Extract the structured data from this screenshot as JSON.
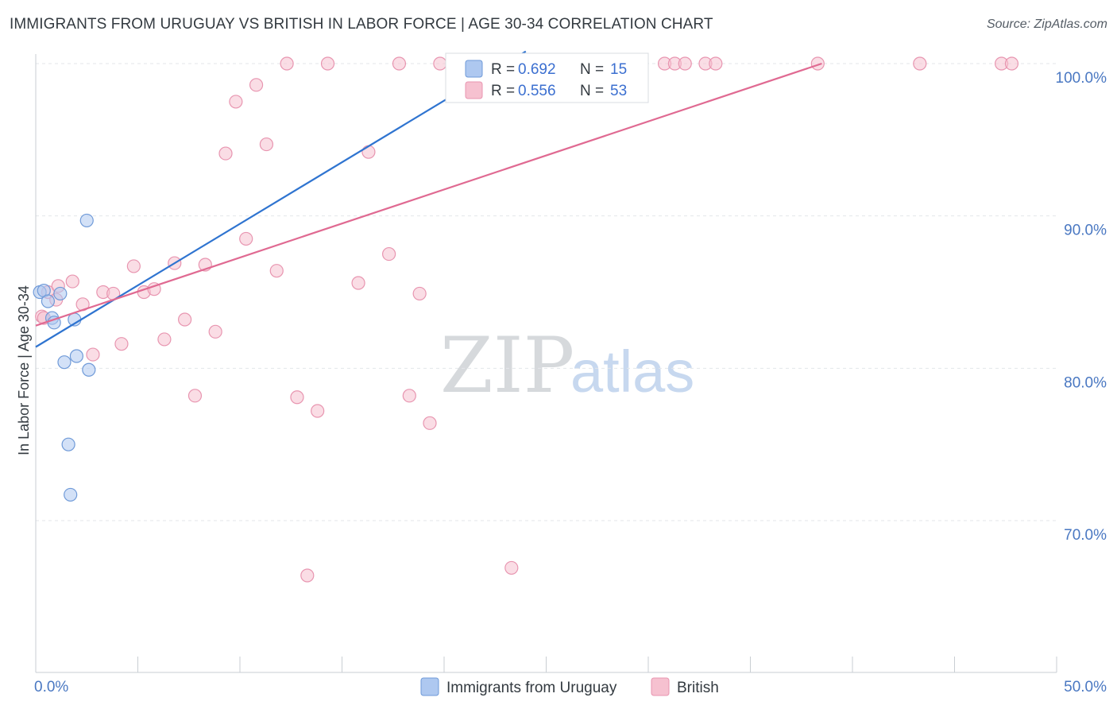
{
  "header": {
    "title": "IMMIGRANTS FROM URUGUAY VS BRITISH IN LABOR FORCE | AGE 30-34 CORRELATION CHART",
    "source": "Source: ZipAtlas.com"
  },
  "watermark": {
    "zip": "ZIP",
    "atlas": "atlas"
  },
  "colors": {
    "uruguay_fill": "#aec8f0",
    "uruguay_stroke": "#6f9ad8",
    "uruguay_line": "#2f74d0",
    "british_fill": "#f6c1d0",
    "british_stroke": "#e895b0",
    "british_line": "#e06a92"
  },
  "legend": {
    "rows": [
      {
        "r_label": "R = ",
        "r_value": "0.692",
        "n_label": "N = ",
        "n_value": "15"
      },
      {
        "r_label": "R = ",
        "r_value": "0.556",
        "n_label": "N = ",
        "n_value": "53"
      }
    ]
  },
  "chart_data": {
    "type": "scatter",
    "title": "IMMIGRANTS FROM URUGUAY VS BRITISH IN LABOR FORCE | AGE 30-34 CORRELATION CHART",
    "xlabel": "",
    "ylabel": "In Labor Force | Age 30-34",
    "xlim": [
      0,
      50
    ],
    "ylim": [
      60.5,
      100.5
    ],
    "x_tick_labels": [
      {
        "value": 0,
        "label": "0.0%"
      },
      {
        "value": 50,
        "label": "50.0%"
      }
    ],
    "y_tick_labels": [
      {
        "value": 100,
        "label": "100.0%"
      },
      {
        "value": 90,
        "label": "90.0%"
      },
      {
        "value": 80,
        "label": "80.0%"
      },
      {
        "value": 70,
        "label": "70.0%"
      }
    ],
    "grid": true,
    "series": [
      {
        "name": "Immigrants from Uruguay",
        "r": 0.692,
        "n": 15,
        "points": [
          [
            0.2,
            85.0
          ],
          [
            0.4,
            85.1
          ],
          [
            0.6,
            84.4
          ],
          [
            0.8,
            83.3
          ],
          [
            0.9,
            83.0
          ],
          [
            1.2,
            84.9
          ],
          [
            1.9,
            83.2
          ],
          [
            2.0,
            80.8
          ],
          [
            1.4,
            80.4
          ],
          [
            2.6,
            79.9
          ],
          [
            2.5,
            89.7
          ],
          [
            1.6,
            75.0
          ],
          [
            1.7,
            71.7
          ],
          [
            22.8,
            100.0
          ],
          [
            24.2,
            100.0
          ]
        ],
        "trend": [
          [
            0.0,
            81.4
          ],
          [
            24.0,
            100.8
          ]
        ]
      },
      {
        "name": "British",
        "r": 0.556,
        "n": 53,
        "points": [
          [
            0.3,
            83.4
          ],
          [
            0.6,
            85.0
          ],
          [
            1.0,
            84.5
          ],
          [
            1.1,
            85.4
          ],
          [
            1.8,
            85.7
          ],
          [
            2.3,
            84.2
          ],
          [
            2.8,
            80.9
          ],
          [
            3.3,
            85.0
          ],
          [
            3.8,
            84.9
          ],
          [
            4.2,
            81.6
          ],
          [
            4.8,
            86.7
          ],
          [
            5.3,
            85.0
          ],
          [
            5.8,
            85.2
          ],
          [
            6.3,
            81.9
          ],
          [
            6.8,
            86.9
          ],
          [
            7.3,
            83.2
          ],
          [
            7.8,
            78.2
          ],
          [
            8.3,
            86.8
          ],
          [
            8.8,
            82.4
          ],
          [
            9.3,
            94.1
          ],
          [
            9.8,
            97.5
          ],
          [
            10.3,
            88.5
          ],
          [
            10.8,
            98.6
          ],
          [
            11.3,
            94.7
          ],
          [
            11.8,
            86.4
          ],
          [
            12.3,
            100.0
          ],
          [
            12.8,
            78.1
          ],
          [
            13.3,
            66.4
          ],
          [
            13.8,
            77.2
          ],
          [
            14.3,
            100.0
          ],
          [
            15.8,
            85.6
          ],
          [
            16.3,
            94.2
          ],
          [
            17.3,
            87.5
          ],
          [
            17.8,
            100.0
          ],
          [
            18.3,
            78.2
          ],
          [
            18.8,
            84.9
          ],
          [
            19.3,
            76.4
          ],
          [
            19.8,
            100.0
          ],
          [
            20.8,
            100.0
          ],
          [
            22.8,
            100.0
          ],
          [
            23.3,
            66.9
          ],
          [
            25.8,
            100.0
          ],
          [
            26.8,
            100.0
          ],
          [
            30.8,
            100.0
          ],
          [
            31.3,
            100.0
          ],
          [
            31.8,
            100.0
          ],
          [
            32.8,
            100.0
          ],
          [
            33.3,
            100.0
          ],
          [
            38.3,
            100.0
          ],
          [
            43.3,
            100.0
          ],
          [
            47.3,
            100.0
          ],
          [
            47.8,
            100.0
          ],
          [
            0.4,
            83.3
          ]
        ],
        "trend": [
          [
            0.0,
            82.8
          ],
          [
            38.5,
            100.0
          ]
        ]
      }
    ]
  },
  "bottom_legend": {
    "items": [
      {
        "label": "Immigrants from Uruguay"
      },
      {
        "label": "British"
      }
    ]
  }
}
